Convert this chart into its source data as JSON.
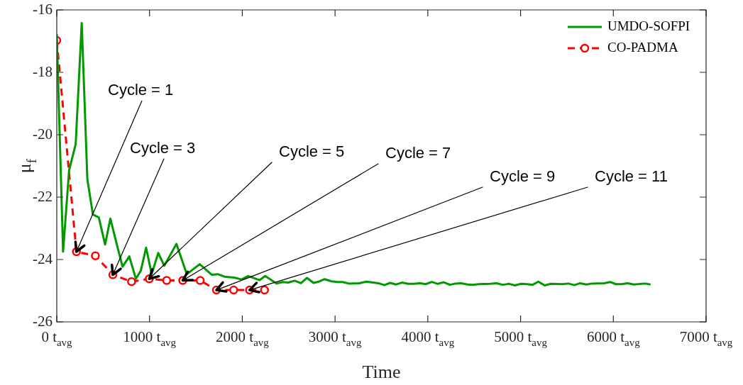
{
  "chart_data": {
    "type": "line",
    "xlabel": "Time",
    "ylabel": "μ$_{f}$",
    "xlim": [
      0,
      7000
    ],
    "ylim": [
      -26,
      -16
    ],
    "xticks": [
      {
        "value": 0,
        "label": "0 t$_{avg}$"
      },
      {
        "value": 1000,
        "label": "1000 t$_{avg}$"
      },
      {
        "value": 2000,
        "label": "2000 t$_{avg}$"
      },
      {
        "value": 3000,
        "label": "3000 t$_{avg}$"
      },
      {
        "value": 4000,
        "label": "4000 t$_{avg}$"
      },
      {
        "value": 5000,
        "label": "5000 t$_{avg}$"
      },
      {
        "value": 6000,
        "label": "6000 t$_{avg}$"
      },
      {
        "value": 7000,
        "label": "7000 t$_{avg}$"
      }
    ],
    "yticks": [
      -26,
      -24,
      -22,
      -20,
      -18,
      -16
    ],
    "grid": false,
    "legend": "top right",
    "series": [
      {
        "name": "UMDO-SOFPI",
        "color": "#009900",
        "marker": "none",
        "line_style": "solid",
        "x": [
          0,
          68,
          133,
          204,
          269,
          330,
          390,
          453,
          521,
          578,
          644,
          709,
          782,
          853,
          906,
          963,
          1023,
          1094,
          1159,
          1290,
          1402,
          1541,
          1672,
          1735,
          1808,
          1913,
          1991,
          2064,
          2187,
          2247,
          2370,
          2436,
          2496,
          2565,
          2632,
          2698,
          2767,
          2826,
          2887,
          2962,
          3022,
          3082,
          3148,
          3262,
          3338,
          3466,
          3532,
          3593,
          3659,
          3719,
          3788,
          3848,
          3917,
          3977,
          4043,
          4109,
          4170,
          4239,
          4298,
          4359,
          4428,
          4487,
          4548,
          4674,
          4740,
          4809,
          4878,
          4938,
          5005,
          5071,
          5130,
          5191,
          5260,
          5320,
          5455,
          5515,
          5581,
          5641,
          5710,
          5770,
          5900,
          5966,
          6026,
          6092,
          6152,
          6221,
          6341,
          6401
        ],
        "values": [
          -16.78,
          -23.75,
          -21.14,
          -20.3,
          -16.42,
          -21.44,
          -22.56,
          -22.65,
          -23.52,
          -22.69,
          -23.48,
          -24.23,
          -23.9,
          -24.62,
          -24.36,
          -23.62,
          -24.47,
          -23.79,
          -24.2,
          -23.5,
          -24.47,
          -24.15,
          -24.49,
          -24.47,
          -24.55,
          -24.58,
          -24.64,
          -24.53,
          -24.66,
          -24.53,
          -24.77,
          -24.72,
          -24.74,
          -24.68,
          -24.76,
          -24.59,
          -24.75,
          -24.71,
          -24.63,
          -24.7,
          -24.72,
          -24.72,
          -24.77,
          -24.76,
          -24.71,
          -24.76,
          -24.82,
          -24.75,
          -24.8,
          -24.74,
          -24.78,
          -24.78,
          -24.76,
          -24.79,
          -24.72,
          -24.78,
          -24.73,
          -24.81,
          -24.77,
          -24.76,
          -24.8,
          -24.81,
          -24.79,
          -24.78,
          -24.76,
          -24.81,
          -24.78,
          -24.83,
          -24.78,
          -24.79,
          -24.81,
          -24.71,
          -24.83,
          -24.78,
          -24.79,
          -24.77,
          -24.82,
          -24.76,
          -24.8,
          -24.77,
          -24.76,
          -24.72,
          -24.79,
          -24.79,
          -24.76,
          -24.8,
          -24.77,
          -24.8
        ]
      },
      {
        "name": "CO-PADMA",
        "color": "#ff0000",
        "marker": "circle",
        "line_style": "dashed",
        "x": [
          0,
          212,
          416,
          604,
          806,
          997,
          1185,
          1358,
          1546,
          1721,
          1907,
          2078,
          2240
        ],
        "values": [
          -16.98,
          -23.75,
          -23.88,
          -24.49,
          -24.71,
          -24.62,
          -24.67,
          -24.67,
          -24.67,
          -24.98,
          -24.98,
          -24.98,
          -24.98
        ]
      }
    ],
    "annotations": [
      {
        "text": "Cycle = 1",
        "x": 212,
        "y": -23.75
      },
      {
        "text": "Cycle = 3",
        "x": 604,
        "y": -24.49
      },
      {
        "text": "Cycle = 5",
        "x": 997,
        "y": -24.62
      },
      {
        "text": "Cycle = 7",
        "x": 1358,
        "y": -24.67
      },
      {
        "text": "Cycle = 9",
        "x": 1721,
        "y": -24.98
      },
      {
        "text": "Cycle = 11",
        "x": 2078,
        "y": -24.98
      }
    ]
  }
}
